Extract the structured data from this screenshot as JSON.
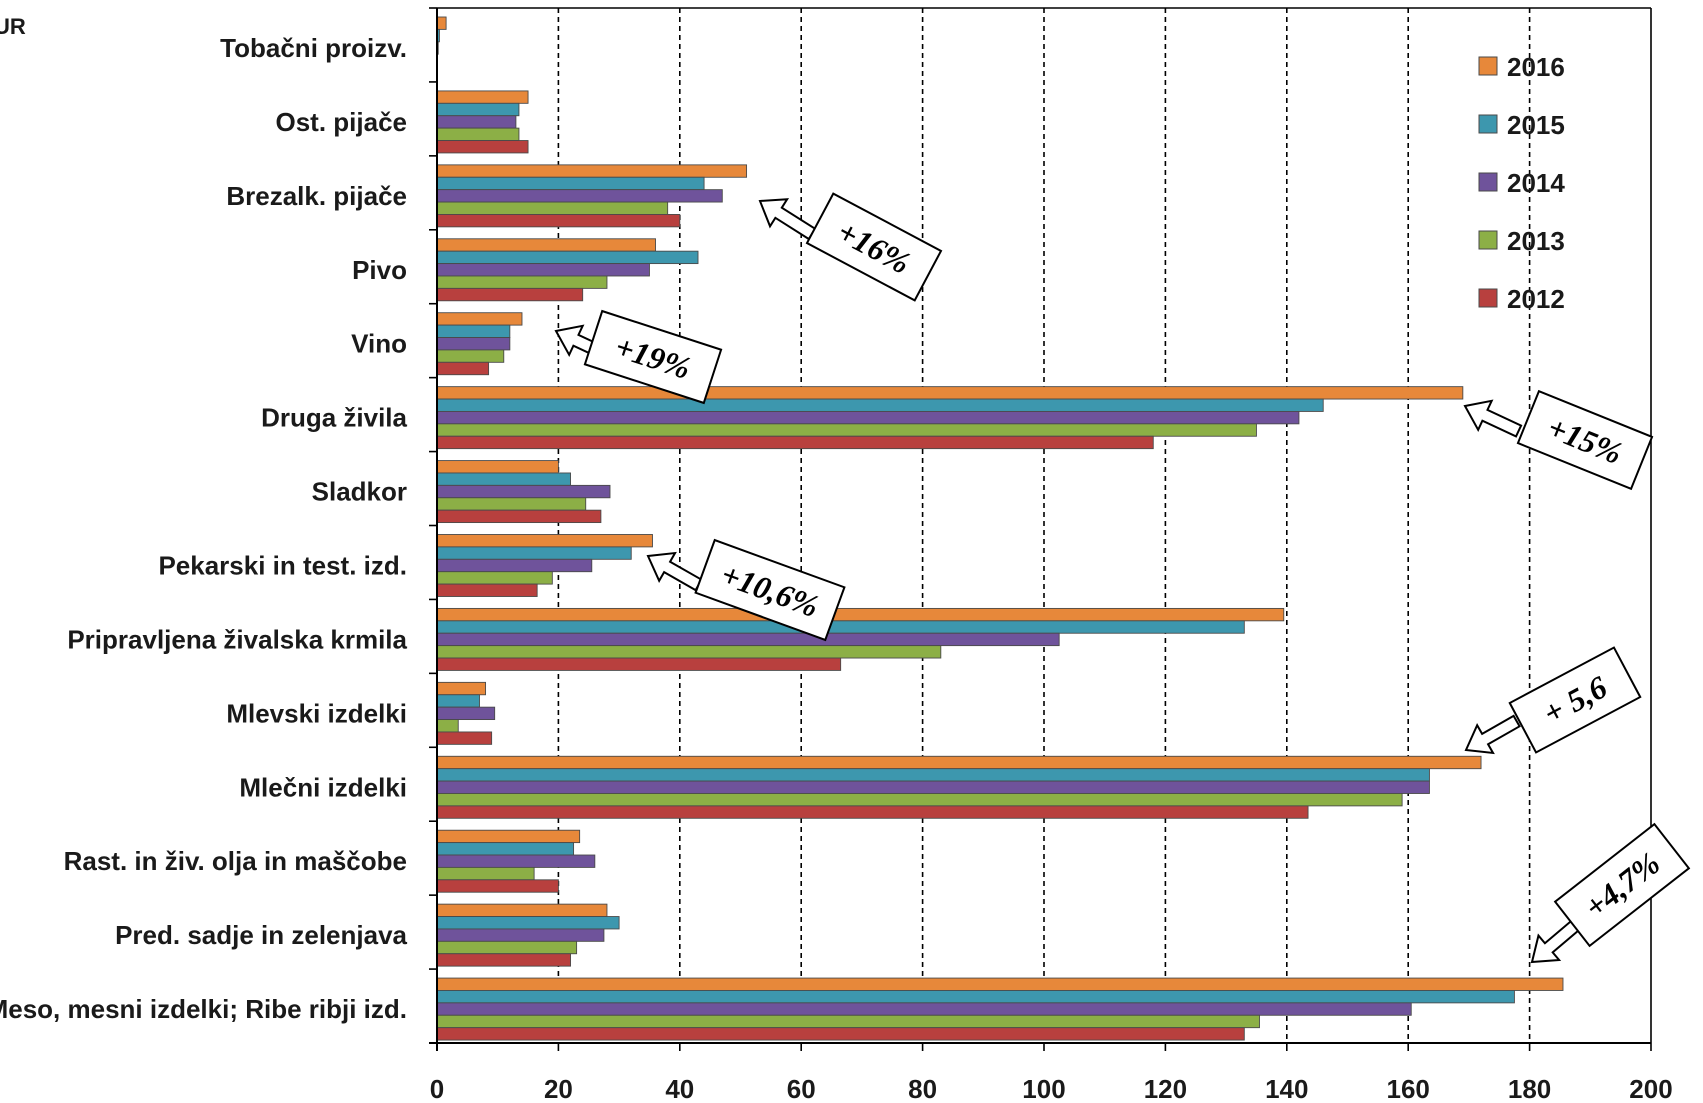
{
  "chart_data": {
    "type": "bar",
    "orientation": "horizontal",
    "unit_label": "UR",
    "categories": [
      "Tobačni proizv.",
      "Ost. pijače",
      "Brezalk. pijače",
      "Pivo",
      "Vino",
      "Druga živila",
      "Sladkor",
      "Pekarski in test. izd.",
      "Pripravljena živalska krmila",
      "Mlevski izdelki",
      "Mlečni izdelki",
      "Rast. in živ. olja in maščobe",
      "Pred. sadje in zelenjava",
      "Meso, mesni izdelki; Ribe ribji izd."
    ],
    "series": [
      {
        "name": "2016",
        "color": "#E7883A",
        "values": [
          1.5,
          15,
          51,
          36,
          14,
          169,
          20,
          35.5,
          139.5,
          8,
          172,
          23.5,
          28,
          185.5
        ]
      },
      {
        "name": "2015",
        "color": "#3D97AE",
        "values": [
          0.4,
          13.5,
          44,
          43,
          12,
          146,
          22,
          32,
          133,
          7,
          163.5,
          22.5,
          30,
          177.5
        ]
      },
      {
        "name": "2014",
        "color": "#6F539B",
        "values": [
          0.2,
          13,
          47,
          35,
          12,
          142,
          28.5,
          25.5,
          102.5,
          9.5,
          163.5,
          26,
          27.5,
          160.5
        ]
      },
      {
        "name": "2013",
        "color": "#8CAF46",
        "values": [
          0,
          13.5,
          38,
          28,
          11,
          135,
          24.5,
          19,
          83,
          3.5,
          159,
          16,
          23,
          135.5
        ]
      },
      {
        "name": "2012",
        "color": "#B8403E",
        "values": [
          0,
          15,
          40,
          24,
          8.5,
          118,
          27,
          16.5,
          66.5,
          9,
          143.5,
          20,
          22,
          133
        ]
      }
    ],
    "xlim": [
      0,
      200
    ],
    "xticks": [
      "0",
      "20",
      "40",
      "60",
      "80",
      "100",
      "120",
      "140",
      "160",
      "180",
      "200"
    ],
    "grid": "vertical dashed",
    "legend_position": "top-right",
    "legend_order": [
      "2016",
      "2015",
      "2014",
      "2013",
      "2012"
    ],
    "annotations": [
      {
        "text": "+16%",
        "category": "Brezalk. pijače"
      },
      {
        "text": "+19%",
        "category": "Vino"
      },
      {
        "text": "+15%",
        "category": "Druga živila"
      },
      {
        "text": "+10,6%",
        "category": "Pekarski in test. izd."
      },
      {
        "text": "+ 5,6",
        "category": "Mlečni izdelki"
      },
      {
        "text": "+4,7%",
        "category": "Meso, mesni izdelki; Ribe ribji izd."
      }
    ]
  }
}
